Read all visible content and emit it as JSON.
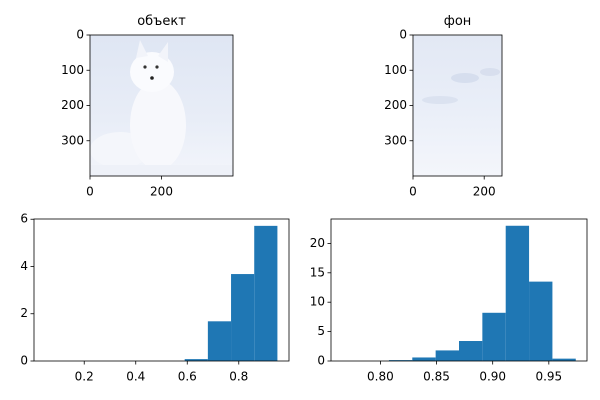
{
  "chart_data": [
    {
      "type": "image",
      "title": "объект",
      "xlim": [
        0,
        400
      ],
      "ylim": [
        400,
        0
      ],
      "xticks": [
        0,
        200
      ],
      "yticks": [
        0,
        100,
        200,
        300
      ]
    },
    {
      "type": "image",
      "title": "фон",
      "xlim": [
        0,
        250
      ],
      "ylim": [
        400,
        0
      ],
      "xticks": [
        0,
        200
      ],
      "yticks": [
        0,
        100,
        200,
        300
      ]
    },
    {
      "type": "histogram",
      "color": "#1f77b4",
      "bins": [
        0.05,
        0.14,
        0.23,
        0.32,
        0.41,
        0.5,
        0.59,
        0.68,
        0.77,
        0.86,
        0.95
      ],
      "values": [
        0,
        0,
        0,
        0,
        0,
        0,
        0.08,
        1.68,
        3.68,
        5.72
      ],
      "xlim": [
        0.005,
        0.995
      ],
      "ylim": [
        0,
        6.01
      ],
      "xticks": [
        0.2,
        0.4,
        0.6,
        0.8
      ],
      "yticks": [
        0,
        2,
        4,
        6
      ]
    },
    {
      "type": "histogram",
      "color": "#1f77b4",
      "bins": [
        0.766,
        0.7868,
        0.8076,
        0.8284,
        0.8492,
        0.87,
        0.8908,
        0.9116,
        0.9324,
        0.9532,
        0.974
      ],
      "values": [
        0,
        0,
        0.15,
        0.6,
        1.8,
        3.4,
        8.2,
        23,
        13.5,
        0.4
      ],
      "xlim": [
        0.756,
        0.984
      ],
      "ylim": [
        0,
        24.15
      ],
      "xticks": [
        {
          "value": 0.8,
          "label": "0.80"
        },
        0.85,
        {
          "value": 0.9,
          "label": "0.90"
        },
        0.95
      ],
      "yticks": [
        0,
        5,
        10,
        15,
        20
      ]
    }
  ]
}
